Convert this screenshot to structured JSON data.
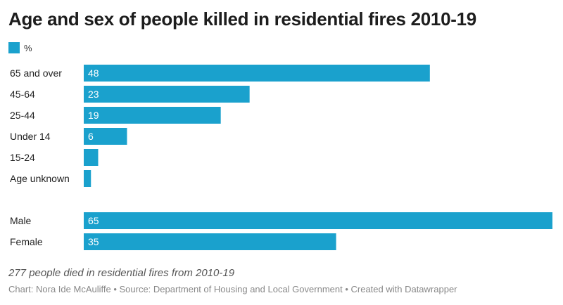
{
  "chart_data": {
    "type": "bar",
    "orientation": "horizontal",
    "title": "Age and sex of people killed in residential fires 2010-19",
    "legend": [
      {
        "label": "%",
        "color": "#1aa1cd"
      }
    ],
    "groups": [
      {
        "categories": [
          "65 and over",
          "45-64",
          "25-44",
          "Under 14",
          "15-24",
          "Age unknown"
        ],
        "values": [
          48,
          23,
          19,
          6,
          2,
          1
        ],
        "labels_shown": [
          true,
          true,
          true,
          true,
          false,
          false
        ]
      },
      {
        "categories": [
          "Male",
          "Female"
        ],
        "values": [
          65,
          35
        ],
        "labels_shown": [
          true,
          true
        ]
      }
    ],
    "xlim": [
      0,
      65
    ],
    "grid": false
  },
  "note": "277 people died in residential fires from 2010-19",
  "footer": "Chart: Nora Ide McAuliffe • Source: Department of Housing and Local Government • Created with Datawrapper"
}
